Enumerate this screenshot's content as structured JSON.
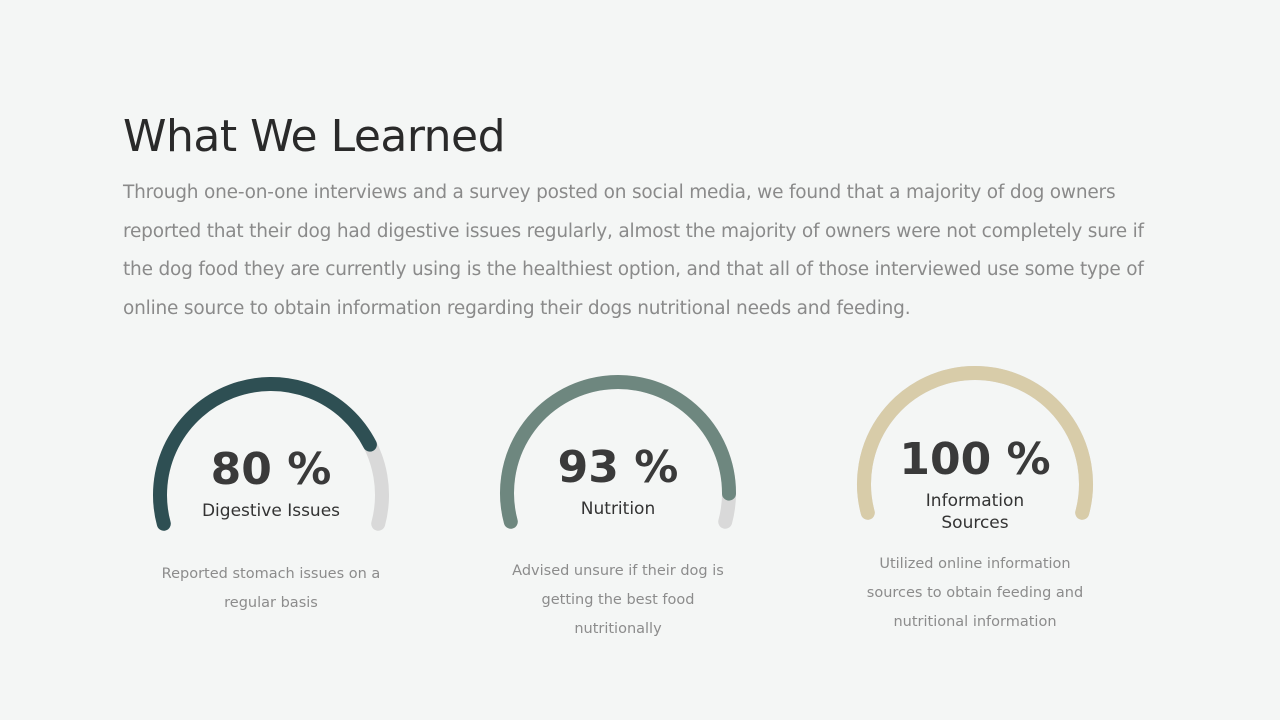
{
  "slide": {
    "title": "What We Learned",
    "intro": "Through one-on-one interviews and a survey posted on social media, we found that a majority of dog owners reported that their dog had digestive issues regularly, almost the majority of owners were not completely sure if the dog food they are currently using is the healthiest option, and that all of those interviewed use some type of online source to obtain information regarding their dogs nutritional needs and feeding."
  },
  "chart_data": [
    {
      "type": "gauge",
      "value": 80,
      "max": 100,
      "value_label": "80 %",
      "label": "Digestive Issues",
      "description": "Reported stomach issues on a regular basis",
      "color": "#2e4f53",
      "track_color": "#d9d9d9"
    },
    {
      "type": "gauge",
      "value": 93,
      "max": 100,
      "value_label": "93 %",
      "label": "Nutrition",
      "description": "Advised unsure if their dog is getting the best food nutritionally",
      "color": "#6e877f",
      "track_color": "#d9d9d9"
    },
    {
      "type": "gauge",
      "value": 100,
      "max": 100,
      "value_label": "100 %",
      "label": "Information Sources",
      "description": "Utilized online information sources to obtain feeding and nutritional information",
      "color": "#d8cca9",
      "track_color": "#d9d9d9"
    }
  ]
}
